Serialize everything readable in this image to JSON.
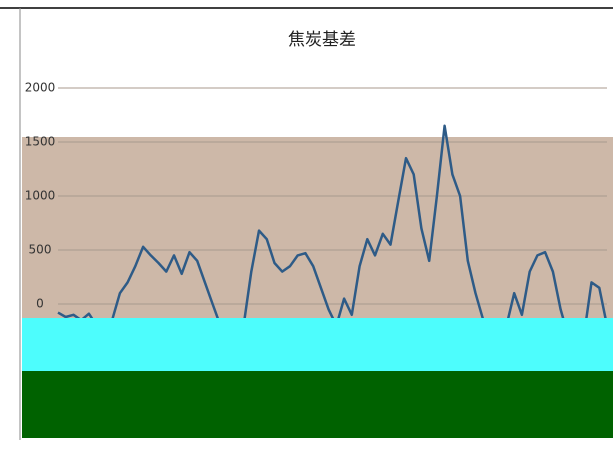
{
  "chart_data": {
    "type": "line",
    "title": "焦炭基差",
    "values": [
      -80,
      -120,
      -100,
      -150,
      -90,
      -200,
      -250,
      -150,
      100,
      200,
      350,
      530,
      450,
      380,
      300,
      450,
      280,
      480,
      400,
      200,
      0,
      -200,
      -300,
      -400,
      -200,
      300,
      680,
      600,
      380,
      300,
      350,
      450,
      470,
      350,
      150,
      -50,
      -200,
      50,
      -100,
      350,
      600,
      450,
      650,
      550,
      950,
      1350,
      1200,
      700,
      400,
      1000,
      1650,
      1200,
      1000,
      400,
      100,
      -150,
      -200,
      -300,
      -200,
      100,
      -100,
      300,
      450,
      480,
      300,
      -50,
      -300,
      -400,
      -300,
      200,
      150,
      -200
    ],
    "color": "#2e5b87",
    "ylim": [
      -500,
      2000
    ],
    "yticks": [
      0,
      500,
      1000,
      1500,
      2000
    ],
    "grid": true
  }
}
